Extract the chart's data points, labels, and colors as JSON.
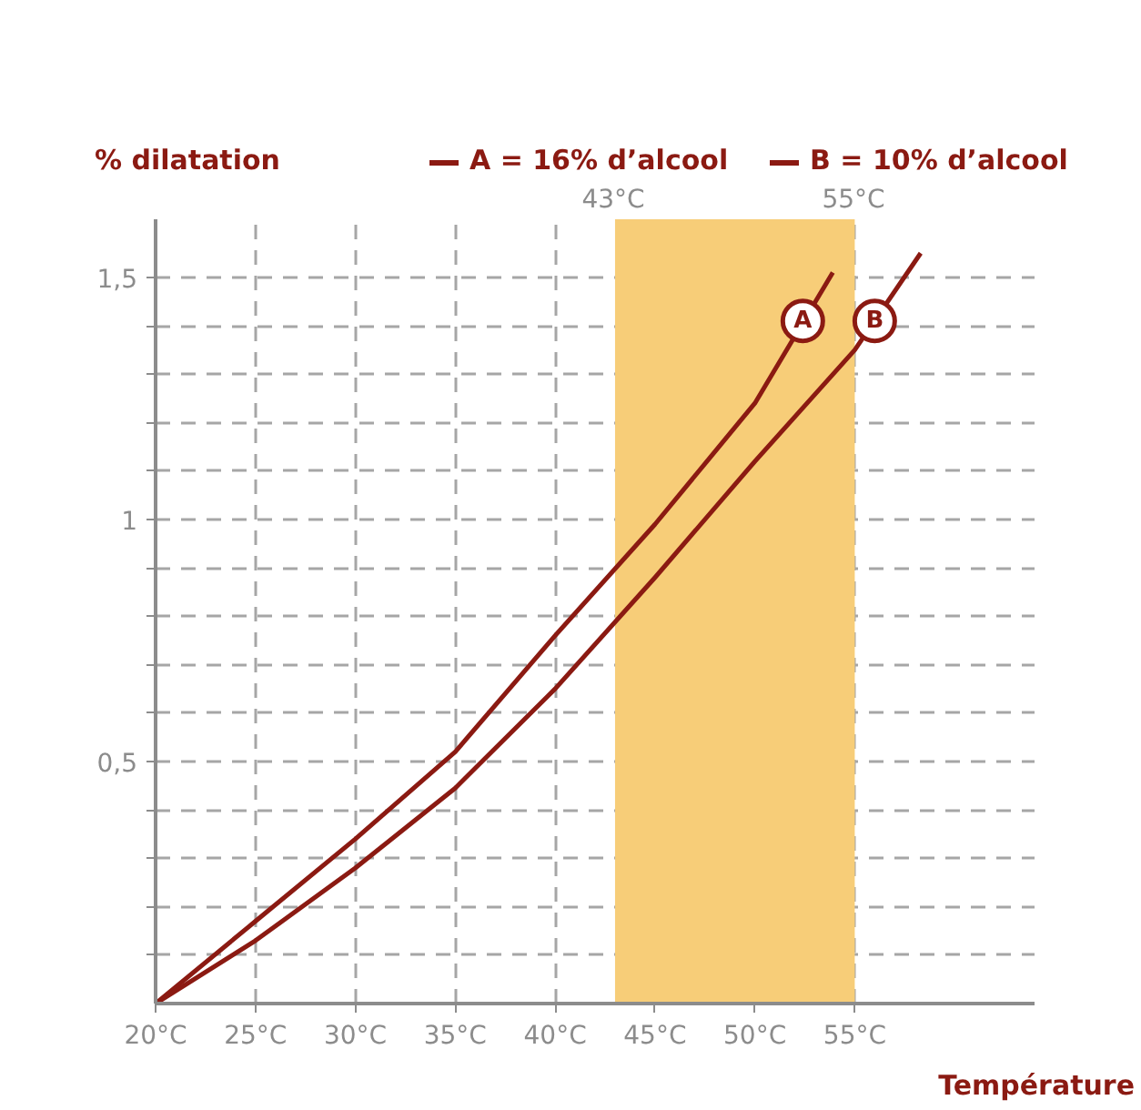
{
  "chart_data": {
    "type": "line",
    "xlabel": "Température",
    "ylabel": "% dilatation",
    "xlim": [
      20,
      64
    ],
    "ylim": [
      0,
      1.62
    ],
    "xticks": [
      {
        "value": 20,
        "label": "20°C"
      },
      {
        "value": 25,
        "label": "25°C"
      },
      {
        "value": 30,
        "label": "30°C"
      },
      {
        "value": 35,
        "label": "35°C"
      },
      {
        "value": 40,
        "label": "40°C"
      },
      {
        "value": 45,
        "label": "45°C"
      },
      {
        "value": 50,
        "label": "50°C"
      },
      {
        "value": 55,
        "label": "55°C"
      }
    ],
    "yticks": [
      {
        "value": 0.1,
        "label": null
      },
      {
        "value": 0.2,
        "label": null
      },
      {
        "value": 0.3,
        "label": null
      },
      {
        "value": 0.4,
        "label": null
      },
      {
        "value": 0.5,
        "label": "0,5"
      },
      {
        "value": 0.6,
        "label": null
      },
      {
        "value": 0.7,
        "label": null
      },
      {
        "value": 0.8,
        "label": null
      },
      {
        "value": 0.9,
        "label": null
      },
      1,
      {
        "value": 1.1,
        "label": null
      },
      {
        "value": 1.2,
        "label": null
      },
      {
        "value": 1.3,
        "label": null
      },
      {
        "value": 1.4,
        "label": null
      },
      {
        "value": 1.5,
        "label": "1,5"
      }
    ],
    "grid": true,
    "legend": "top right",
    "marker": "none",
    "line_style": "solid",
    "bands": [
      {
        "axis": "x",
        "from": 43,
        "to": 55,
        "color": "#f7cd78"
      }
    ],
    "annotations": [
      {
        "text": "43°C",
        "x": 43,
        "y": 1.62
      },
      {
        "text": "55°C",
        "x": 55,
        "y": 1.62
      },
      {
        "text": "A",
        "x": 52.4,
        "y": 1.41
      },
      {
        "text": "B",
        "x": 56.0,
        "y": 1.41
      }
    ],
    "series": [
      {
        "name": "A = 16% d’alcool",
        "color": "#8b1a12",
        "x": [
          20,
          25,
          30,
          35,
          40,
          45,
          50,
          53.9
        ],
        "values": [
          0,
          0.17,
          0.34,
          0.52,
          0.76,
          0.99,
          1.24,
          1.51
        ]
      },
      {
        "name": "B = 10% d’alcool",
        "color": "#8b1a12",
        "x": [
          20,
          25,
          30,
          35,
          40,
          45,
          50,
          55,
          58.3
        ],
        "values": [
          0,
          0.13,
          0.28,
          0.445,
          0.65,
          0.88,
          1.12,
          1.35,
          1.55
        ]
      }
    ]
  }
}
